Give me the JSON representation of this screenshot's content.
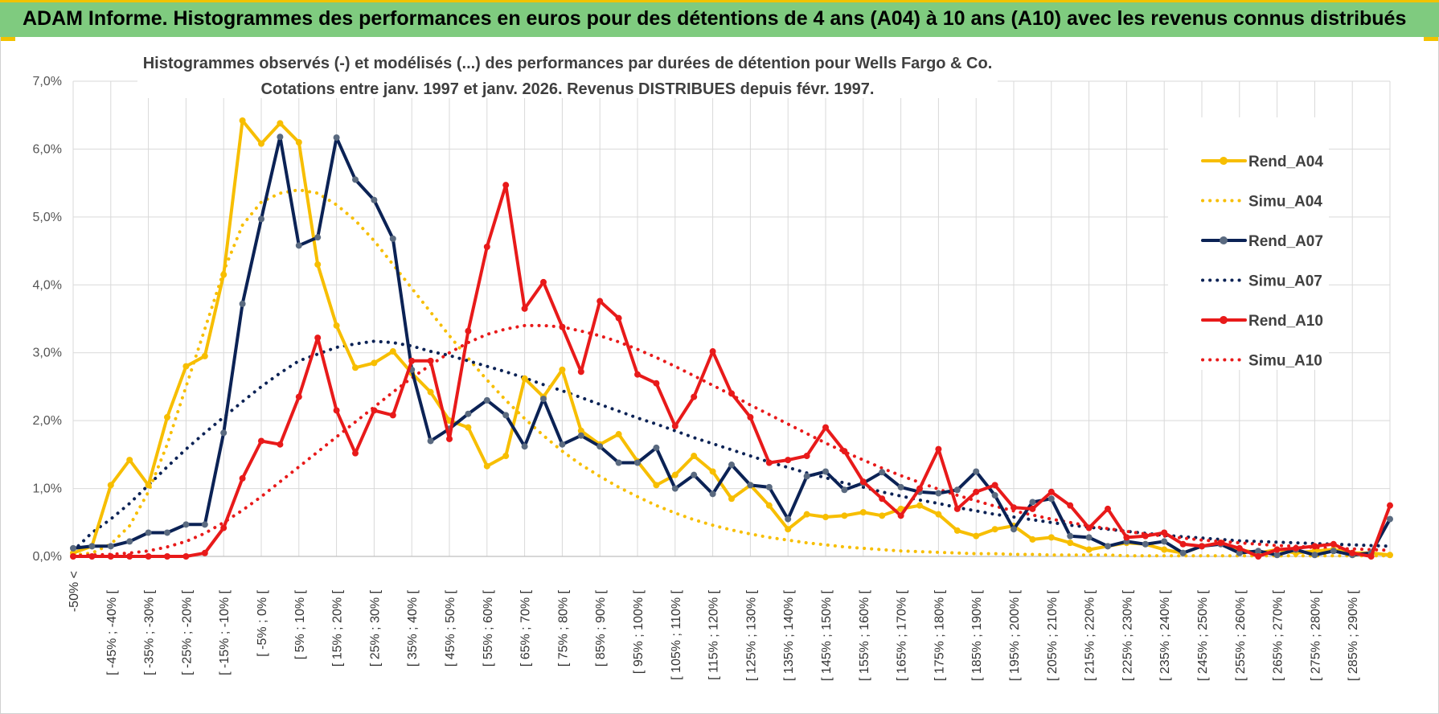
{
  "header": {
    "title": "ADAM Informe. Histogrammes des performances en euros pour des détentions de 4 ans (A04) à 10 ans (A10) avec les revenus connus distribués"
  },
  "colors": {
    "yellow": "#f7be00",
    "navy": "#0b2255",
    "red": "#e81a1a",
    "header_bg": "#7fcb7f",
    "accent": "#f2c200"
  },
  "chart_data": {
    "type": "line",
    "title_lines": [
      "Histogrammes observés (-) et modélisés (...) des performances par durées de détention pour Wells Fargo & Co.",
      "Cotations entre janv. 1997 et janv. 2026. Revenus DISTRIBUES depuis févr. 1997."
    ],
    "ylim": [
      0,
      7
    ],
    "y_ticks": [
      "0,0%",
      "1,0%",
      "2,0%",
      "3,0%",
      "4,0%",
      "5,0%",
      "6,0%",
      "7,0%"
    ],
    "grid": true,
    "legend_position": "right",
    "x_tick_labels": [
      "-50% <",
      "[ -45% ; -40% [",
      "[ -35% ; -30% [",
      "[ -25% ; -20% [",
      "[ -15% ; -10% [",
      "[ -5% ; 0% [",
      "[ 5% ; 10% [",
      "[ 15% ; 20% [",
      "[ 25% ; 30% [",
      "[ 35% ; 40% [",
      "[ 45% ; 50% [",
      "[ 55% ; 60% [",
      "[ 65% ; 70% [",
      "[ 75% ; 80% [",
      "[ 85% ; 90% [",
      "[ 95% ; 100% [",
      "[ 105% ; 110% [",
      "[ 115% ; 120% [",
      "[ 125% ; 130% [",
      "[ 135% ; 140% [",
      "[ 145% ; 150% [",
      "[ 155% ; 160% [",
      "[ 165% ; 170% [",
      "[ 175% ; 180% [",
      "[ 185% ; 190% [",
      "[ 195% ; 200% [",
      "[ 205% ; 210% [",
      "[ 215% ; 220% [",
      "[ 225% ; 230% [",
      "[ 235% ; 240% [",
      "[ 245% ; 250% [",
      "[ 255% ; 260% [",
      "[ 265% ; 270% [",
      "[ 275% ; 280% [",
      "[ 285% ; 290% ["
    ],
    "series": [
      {
        "name": "Rend_A04",
        "style": "solid",
        "color": "#f7be00",
        "values": [
          0.05,
          0.15,
          1.05,
          1.42,
          1.05,
          2.05,
          2.8,
          2.95,
          4.15,
          6.42,
          6.08,
          6.38,
          6.1,
          4.3,
          3.4,
          2.78,
          2.85,
          3.02,
          2.7,
          2.42,
          2.0,
          1.9,
          1.33,
          1.48,
          2.62,
          2.35,
          2.75,
          1.85,
          1.65,
          1.8,
          1.4,
          1.05,
          1.2,
          1.48,
          1.25,
          0.85,
          1.05,
          0.75,
          0.4,
          0.62,
          0.58,
          0.6,
          0.65,
          0.6,
          0.7,
          0.75,
          0.62,
          0.38,
          0.3,
          0.4,
          0.45,
          0.25,
          0.28,
          0.2,
          0.1,
          0.15,
          0.2,
          0.18,
          0.1,
          0.05,
          0.15,
          0.2,
          0.1,
          0.05,
          0.1,
          0.05,
          0.08,
          0.1,
          0.05,
          0.05,
          0.02
        ]
      },
      {
        "name": "Simu_A04",
        "style": "dotted",
        "color": "#f7be00",
        "values": [
          0.02,
          0.05,
          0.18,
          0.45,
          0.95,
          1.65,
          2.5,
          3.35,
          4.2,
          4.88,
          5.22,
          5.35,
          5.4,
          5.35,
          5.18,
          4.95,
          4.65,
          4.3,
          3.95,
          3.6,
          3.25,
          2.92,
          2.6,
          2.3,
          2.03,
          1.78,
          1.55,
          1.35,
          1.18,
          1.02,
          0.88,
          0.75,
          0.64,
          0.54,
          0.46,
          0.39,
          0.33,
          0.28,
          0.24,
          0.2,
          0.17,
          0.14,
          0.12,
          0.1,
          0.08,
          0.07,
          0.06,
          0.05,
          0.04,
          0.04,
          0.03,
          0.03,
          0.02,
          0.02,
          0.02,
          0.02,
          0.01,
          0.01,
          0.01,
          0.01,
          0.01,
          0.01,
          0.01,
          0.01,
          0.01,
          0.01,
          0.01,
          0.01,
          0.01,
          0.01,
          0.01
        ]
      },
      {
        "name": "Rend_A07",
        "style": "solid",
        "color": "#0b2255",
        "values": [
          0.12,
          0.15,
          0.15,
          0.22,
          0.35,
          0.35,
          0.47,
          0.47,
          1.82,
          3.72,
          4.97,
          6.18,
          4.58,
          4.7,
          6.17,
          5.55,
          5.25,
          4.68,
          2.75,
          1.7,
          1.88,
          2.1,
          2.3,
          2.08,
          1.62,
          2.32,
          1.65,
          1.78,
          1.62,
          1.38,
          1.38,
          1.6,
          1.0,
          1.2,
          0.92,
          1.35,
          1.05,
          1.02,
          0.55,
          1.18,
          1.25,
          0.98,
          1.08,
          1.24,
          1.02,
          0.95,
          0.93,
          0.98,
          1.25,
          0.9,
          0.4,
          0.8,
          0.85,
          0.3,
          0.28,
          0.15,
          0.22,
          0.18,
          0.22,
          0.05,
          0.15,
          0.18,
          0.05,
          0.08,
          0.02,
          0.1,
          0.02,
          0.08,
          0.02,
          0.05,
          0.55
        ]
      },
      {
        "name": "Simu_A07",
        "style": "dotted",
        "color": "#0b2255",
        "values": [
          0.08,
          0.35,
          0.55,
          0.78,
          1.05,
          1.32,
          1.58,
          1.82,
          2.05,
          2.28,
          2.5,
          2.7,
          2.88,
          2.98,
          3.08,
          3.13,
          3.17,
          3.15,
          3.1,
          3.02,
          2.96,
          2.88,
          2.8,
          2.72,
          2.63,
          2.53,
          2.44,
          2.34,
          2.24,
          2.14,
          2.04,
          1.95,
          1.85,
          1.75,
          1.66,
          1.57,
          1.48,
          1.39,
          1.31,
          1.23,
          1.16,
          1.08,
          1.02,
          0.95,
          0.89,
          0.83,
          0.78,
          0.72,
          0.67,
          0.62,
          0.58,
          0.54,
          0.5,
          0.46,
          0.43,
          0.4,
          0.37,
          0.34,
          0.31,
          0.29,
          0.27,
          0.25,
          0.23,
          0.22,
          0.21,
          0.2,
          0.19,
          0.18,
          0.17,
          0.16,
          0.15
        ]
      },
      {
        "name": "Rend_A10",
        "style": "solid",
        "color": "#e81a1a",
        "values": [
          0.0,
          0.0,
          0.0,
          0.0,
          0.0,
          0.0,
          0.0,
          0.05,
          0.42,
          1.15,
          1.7,
          1.65,
          2.35,
          3.22,
          2.15,
          1.52,
          2.15,
          2.08,
          2.88,
          2.88,
          1.73,
          3.32,
          4.56,
          5.47,
          3.65,
          4.04,
          3.38,
          2.72,
          3.76,
          3.51,
          2.68,
          2.55,
          1.92,
          2.35,
          3.02,
          2.4,
          2.05,
          1.38,
          1.42,
          1.48,
          1.9,
          1.55,
          1.1,
          0.85,
          0.6,
          1.0,
          1.58,
          0.7,
          0.95,
          1.05,
          0.72,
          0.7,
          0.95,
          0.75,
          0.42,
          0.7,
          0.28,
          0.3,
          0.35,
          0.18,
          0.15,
          0.2,
          0.12,
          0.0,
          0.1,
          0.12,
          0.15,
          0.18,
          0.05,
          0.0,
          0.75
        ]
      },
      {
        "name": "Simu_A10",
        "style": "dotted",
        "color": "#e81a1a",
        "values": [
          0.01,
          0.02,
          0.03,
          0.05,
          0.08,
          0.14,
          0.22,
          0.34,
          0.5,
          0.68,
          0.88,
          1.1,
          1.32,
          1.54,
          1.76,
          1.98,
          2.2,
          2.42,
          2.63,
          2.82,
          3.0,
          3.15,
          3.27,
          3.35,
          3.4,
          3.4,
          3.38,
          3.32,
          3.25,
          3.16,
          3.05,
          2.93,
          2.8,
          2.66,
          2.52,
          2.38,
          2.23,
          2.09,
          1.95,
          1.81,
          1.67,
          1.54,
          1.42,
          1.3,
          1.19,
          1.09,
          0.99,
          0.9,
          0.82,
          0.74,
          0.67,
          0.61,
          0.55,
          0.5,
          0.45,
          0.41,
          0.37,
          0.33,
          0.3,
          0.27,
          0.24,
          0.22,
          0.2,
          0.18,
          0.16,
          0.15,
          0.13,
          0.12,
          0.11,
          0.1,
          0.09
        ]
      }
    ]
  }
}
